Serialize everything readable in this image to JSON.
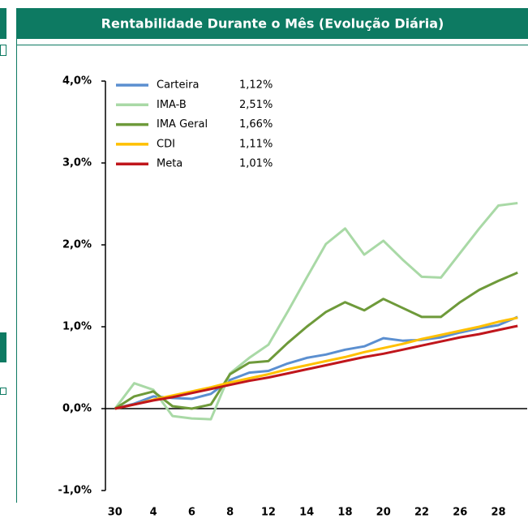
{
  "chart_data": {
    "type": "line",
    "title": "Rentabilidade Durante o Mês (Evolução Diária)",
    "categories": [
      "30",
      null,
      "4",
      null,
      "6",
      null,
      "8",
      null,
      "12",
      null,
      "14",
      null,
      "18",
      null,
      "20",
      null,
      "22",
      null,
      "26",
      null,
      "28",
      null
    ],
    "ylim": [
      -1,
      4
    ],
    "yticks": [
      {
        "value": -1,
        "label": "-1,0%"
      },
      {
        "value": 0,
        "label": "0,0%"
      },
      {
        "value": 1,
        "label": "1,0%"
      },
      {
        "value": 2,
        "label": "2,0%"
      },
      {
        "value": 3,
        "label": "3,0%"
      },
      {
        "value": 4,
        "label": "4,0%"
      }
    ],
    "grid": false,
    "legend": "top-left",
    "series": [
      {
        "name": "Carteira",
        "legend_label": "1,12%",
        "color": "#5b8fd0",
        "values": [
          0,
          0.06,
          0.15,
          0.13,
          0.12,
          0.18,
          0.35,
          0.44,
          0.46,
          0.55,
          0.62,
          0.66,
          0.72,
          0.76,
          0.86,
          0.83,
          0.84,
          0.87,
          0.93,
          0.98,
          1.02,
          1.12
        ]
      },
      {
        "name": "IMA-B",
        "legend_label": "2,51%",
        "color": "#a9d9a6",
        "values": [
          0,
          0.31,
          0.23,
          -0.09,
          -0.12,
          -0.13,
          0.43,
          0.62,
          0.78,
          1.18,
          1.6,
          2.01,
          2.2,
          1.88,
          2.05,
          1.82,
          1.61,
          1.6,
          1.9,
          2.2,
          2.48,
          2.51
        ]
      },
      {
        "name": "IMA Geral",
        "legend_label": "1,66%",
        "color": "#6e9a3a",
        "values": [
          0,
          0.15,
          0.21,
          0.03,
          0,
          0.05,
          0.42,
          0.56,
          0.58,
          0.8,
          1.0,
          1.18,
          1.3,
          1.2,
          1.34,
          1.23,
          1.12,
          1.12,
          1.3,
          1.45,
          1.56,
          1.66
        ]
      },
      {
        "name": "CDI",
        "legend_label": "1,11%",
        "color": "#ffc000",
        "values": [
          0,
          0.05,
          0.11,
          0.16,
          0.21,
          0.26,
          0.32,
          0.37,
          0.42,
          0.48,
          0.53,
          0.58,
          0.63,
          0.69,
          0.74,
          0.79,
          0.85,
          0.9,
          0.95,
          1.0,
          1.06,
          1.11
        ]
      },
      {
        "name": "Meta",
        "legend_label": "1,01%",
        "color": "#c0161c",
        "values": [
          0,
          0.05,
          0.1,
          0.14,
          0.19,
          0.24,
          0.29,
          0.34,
          0.38,
          0.43,
          0.48,
          0.53,
          0.58,
          0.63,
          0.67,
          0.72,
          0.77,
          0.82,
          0.87,
          0.91,
          0.96,
          1.01
        ]
      }
    ]
  }
}
